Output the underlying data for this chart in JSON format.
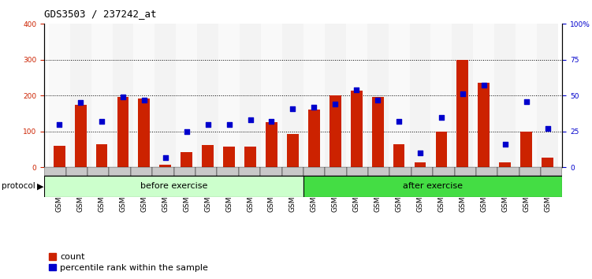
{
  "title": "GDS3503 / 237242_at",
  "categories": [
    "GSM306062",
    "GSM306064",
    "GSM306066",
    "GSM306068",
    "GSM306070",
    "GSM306072",
    "GSM306074",
    "GSM306076",
    "GSM306078",
    "GSM306080",
    "GSM306082",
    "GSM306084",
    "GSM306063",
    "GSM306065",
    "GSM306067",
    "GSM306069",
    "GSM306071",
    "GSM306073",
    "GSM306075",
    "GSM306077",
    "GSM306079",
    "GSM306081",
    "GSM306083",
    "GSM306085"
  ],
  "bar_values": [
    60,
    175,
    65,
    197,
    192,
    8,
    42,
    62,
    57,
    57,
    125,
    93,
    160,
    200,
    213,
    197,
    65,
    15,
    100,
    300,
    235,
    15,
    100,
    28
  ],
  "percentile_values": [
    30,
    45,
    32,
    49,
    47,
    7,
    25,
    30,
    30,
    33,
    32,
    41,
    42,
    44,
    54,
    47,
    32,
    10,
    35,
    51,
    57,
    16,
    46,
    27
  ],
  "before_exercise_count": 12,
  "after_exercise_count": 12,
  "left_ylim": [
    0,
    400
  ],
  "right_ylim": [
    0,
    100
  ],
  "left_yticks": [
    0,
    100,
    200,
    300,
    400
  ],
  "right_yticks": [
    0,
    25,
    50,
    75,
    100
  ],
  "right_yticklabels": [
    "0",
    "25",
    "50",
    "75",
    "100%"
  ],
  "bar_color": "#cc2200",
  "dot_color": "#0000cc",
  "before_color": "#ccffcc",
  "after_color": "#44dd44",
  "grid_color": "#000000",
  "title_fontsize": 9,
  "tick_fontsize": 6.5,
  "legend_fontsize": 8,
  "label_fontsize": 8
}
